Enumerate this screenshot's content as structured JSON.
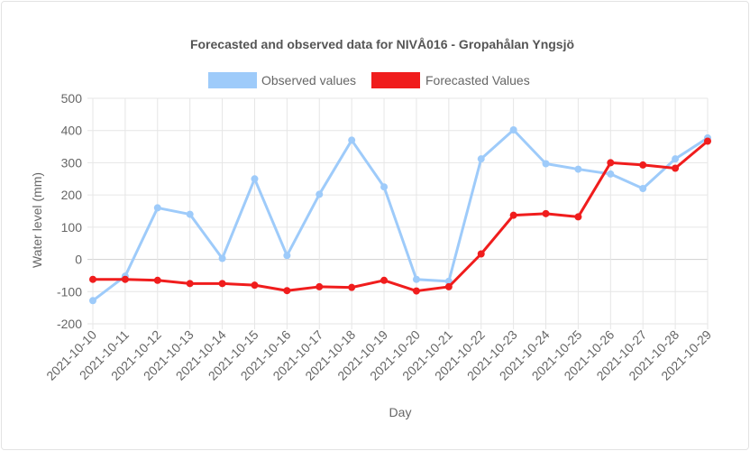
{
  "chart_data": {
    "type": "line",
    "title": "Forecasted and observed data for NIVÅ016 - Gropahålan Yngsjö",
    "xlabel": "Day",
    "ylabel": "Water level (mm)",
    "ylim": [
      -200,
      500
    ],
    "yticks": [
      500,
      400,
      300,
      200,
      100,
      0,
      -100,
      -200
    ],
    "grid": true,
    "legend_position": "top",
    "categories": [
      "2021-10-10",
      "2021-10-11",
      "2021-10-12",
      "2021-10-13",
      "2021-10-14",
      "2021-10-15",
      "2021-10-16",
      "2021-10-17",
      "2021-10-18",
      "2021-10-19",
      "2021-10-20",
      "2021-10-21",
      "2021-10-22",
      "2021-10-23",
      "2021-10-24",
      "2021-10-25",
      "2021-10-26",
      "2021-10-27",
      "2021-10-28",
      "2021-10-29"
    ],
    "series": [
      {
        "name": "Observed values",
        "color": "#9ecbfa",
        "values": [
          -128,
          -52,
          160,
          140,
          3,
          250,
          12,
          202,
          370,
          225,
          -62,
          -68,
          312,
          402,
          297,
          280,
          265,
          220,
          312,
          377
        ]
      },
      {
        "name": "Forecasted Values",
        "color": "#f01d1d",
        "values": [
          -62,
          -62,
          -65,
          -75,
          -75,
          -80,
          -97,
          -85,
          -87,
          -65,
          -98,
          -85,
          17,
          137,
          142,
          132,
          300,
          293,
          283,
          367
        ]
      }
    ]
  }
}
